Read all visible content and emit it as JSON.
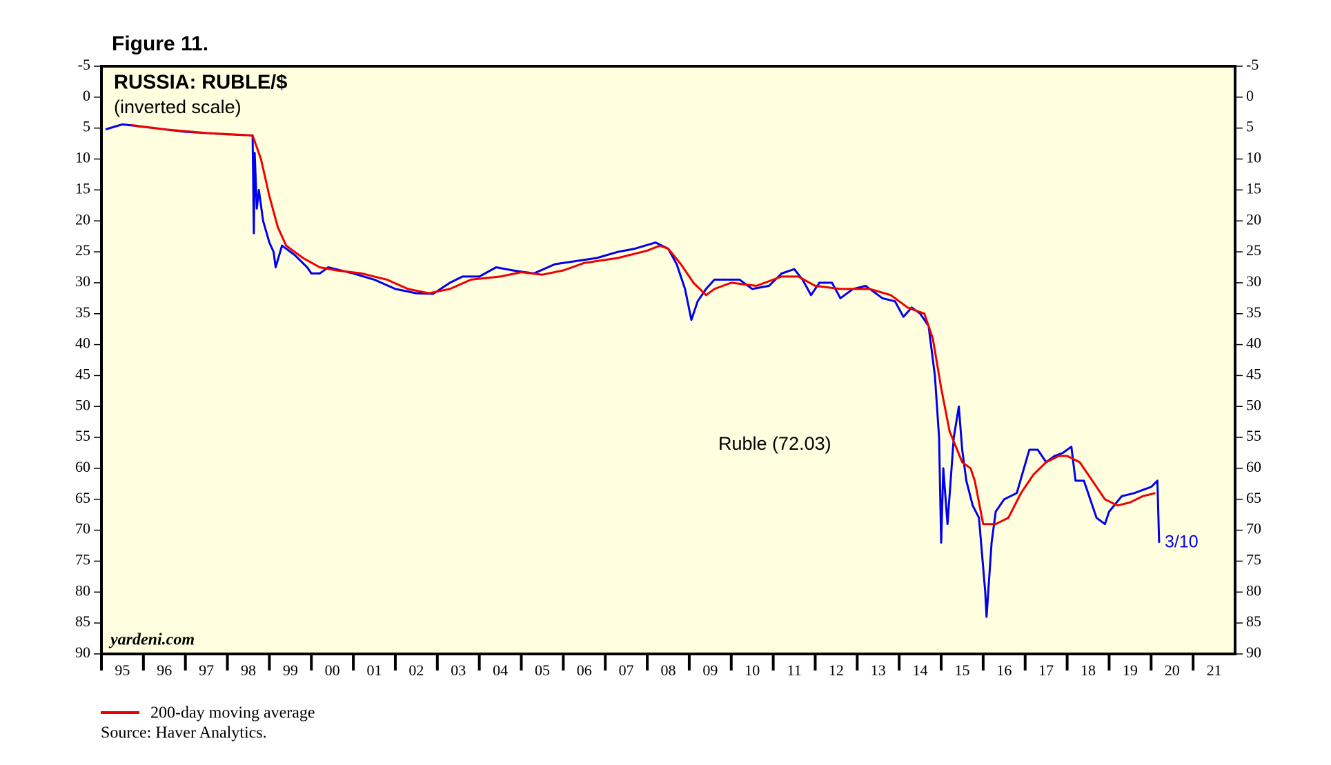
{
  "chart_data": {
    "type": "line",
    "figure_label": "Figure 11.",
    "title": "RUSSIA: RUBLE/$",
    "subtitle": "(inverted scale)",
    "watermark": "yardeni.com",
    "source": "Source: Haver Analytics.",
    "end_label": "3/10",
    "inverted": true,
    "grid": false,
    "background": "#ffffe0",
    "ylim": [
      -5,
      90
    ],
    "yticks": [
      -5,
      0,
      5,
      10,
      15,
      20,
      25,
      30,
      35,
      40,
      45,
      50,
      55,
      60,
      65,
      70,
      75,
      80,
      85,
      90
    ],
    "xlim": [
      1995,
      2022
    ],
    "xticks": [
      {
        "value": 1995.5,
        "label": "95"
      },
      {
        "value": 1996.5,
        "label": "96"
      },
      {
        "value": 1997.5,
        "label": "97"
      },
      {
        "value": 1998.5,
        "label": "98"
      },
      {
        "value": 1999.5,
        "label": "99"
      },
      {
        "value": 2000.5,
        "label": "00"
      },
      {
        "value": 2001.5,
        "label": "01"
      },
      {
        "value": 2002.5,
        "label": "02"
      },
      {
        "value": 2003.5,
        "label": "03"
      },
      {
        "value": 2004.5,
        "label": "04"
      },
      {
        "value": 2005.5,
        "label": "05"
      },
      {
        "value": 2006.5,
        "label": "06"
      },
      {
        "value": 2007.5,
        "label": "07"
      },
      {
        "value": 2008.5,
        "label": "08"
      },
      {
        "value": 2009.5,
        "label": "09"
      },
      {
        "value": 2010.5,
        "label": "10"
      },
      {
        "value": 2011.5,
        "label": "11"
      },
      {
        "value": 2012.5,
        "label": "12"
      },
      {
        "value": 2013.5,
        "label": "13"
      },
      {
        "value": 2014.5,
        "label": "14"
      },
      {
        "value": 2015.5,
        "label": "15"
      },
      {
        "value": 2016.5,
        "label": "16"
      },
      {
        "value": 2017.5,
        "label": "17"
      },
      {
        "value": 2018.5,
        "label": "18"
      },
      {
        "value": 2019.5,
        "label": "19"
      },
      {
        "value": 2020.5,
        "label": "20"
      },
      {
        "value": 2021.5,
        "label": "21"
      }
    ],
    "series": [
      {
        "name": "Ruble (72.03)",
        "color": "#0000ee",
        "x": [
          1995.1,
          1995.5,
          1996,
          1996.5,
          1997,
          1997.5,
          1998,
          1998.6,
          1998.63,
          1998.65,
          1998.7,
          1998.75,
          1998.85,
          1999,
          1999.1,
          1999.15,
          1999.3,
          1999.6,
          1999.9,
          2000,
          2000.2,
          2000.4,
          2001,
          2001.5,
          2002,
          2002.5,
          2002.9,
          2003.3,
          2003.6,
          2004,
          2004.4,
          2004.8,
          2005.3,
          2005.8,
          2006.3,
          2006.8,
          2007.3,
          2007.7,
          2008.2,
          2008.5,
          2008.7,
          2008.9,
          2009.05,
          2009.2,
          2009.4,
          2009.6,
          2009.9,
          2010.2,
          2010.5,
          2010.9,
          2011.2,
          2011.5,
          2011.7,
          2011.9,
          2012.1,
          2012.4,
          2012.6,
          2012.9,
          2013.2,
          2013.6,
          2013.9,
          2014.1,
          2014.3,
          2014.5,
          2014.7,
          2014.85,
          2014.95,
          2015,
          2015.05,
          2015.15,
          2015.3,
          2015.42,
          2015.5,
          2015.6,
          2015.75,
          2015.9,
          2016.05,
          2016.08,
          2016.2,
          2016.3,
          2016.5,
          2016.8,
          2017.1,
          2017.3,
          2017.5,
          2017.7,
          2017.9,
          2018.1,
          2018.2,
          2018.4,
          2018.6,
          2018.7,
          2018.9,
          2019,
          2019.3,
          2019.6,
          2019.8,
          2020,
          2020.15,
          2020.19
        ],
        "values": [
          5.2,
          4.4,
          4.8,
          5.2,
          5.6,
          5.8,
          6.0,
          6.2,
          22,
          9,
          18,
          15,
          20,
          23.5,
          25,
          27.5,
          24,
          25.5,
          27.5,
          28.5,
          28.5,
          27.5,
          28.5,
          29.5,
          31,
          31.7,
          31.8,
          30,
          29,
          29,
          27.5,
          28,
          28.5,
          27,
          26.5,
          26,
          25,
          24.5,
          23.5,
          24.5,
          27,
          31,
          36,
          33,
          31,
          29.5,
          29.5,
          29.5,
          31,
          30.5,
          28.5,
          27.8,
          29.5,
          32,
          30,
          30,
          32.5,
          31,
          30.5,
          32.5,
          33,
          35.5,
          34,
          35,
          37,
          45,
          55,
          72,
          60,
          69,
          55,
          50,
          57,
          62,
          66,
          68,
          80,
          84,
          72,
          67,
          65,
          64,
          57,
          57,
          59,
          58,
          57.5,
          56.5,
          62,
          62,
          66,
          68,
          69,
          67,
          64.5,
          64,
          63.5,
          63,
          62,
          72.03
        ]
      },
      {
        "name": "200-day moving average",
        "color": "#ee0000",
        "x": [
          1995.7,
          1996.5,
          1997.5,
          1998.6,
          1998.8,
          1999,
          1999.2,
          1999.4,
          1999.8,
          2000.2,
          2000.6,
          2001.2,
          2001.8,
          2002.3,
          2002.8,
          2003.3,
          2003.8,
          2004.5,
          2005,
          2005.5,
          2006,
          2006.5,
          2007.3,
          2008,
          2008.3,
          2008.5,
          2008.8,
          2009.1,
          2009.4,
          2009.6,
          2010,
          2010.6,
          2011.2,
          2011.6,
          2012,
          2012.6,
          2013.3,
          2013.8,
          2014.2,
          2014.6,
          2014.8,
          2015,
          2015.2,
          2015.5,
          2015.7,
          2015.8,
          2016,
          2016.3,
          2016.6,
          2016.9,
          2017.2,
          2017.5,
          2017.8,
          2018,
          2018.3,
          2018.6,
          2018.9,
          2019.2,
          2019.5,
          2019.8,
          2020.1
        ],
        "values": [
          4.5,
          5.2,
          5.8,
          6.2,
          10,
          16,
          21,
          24,
          26,
          27.5,
          28,
          28.5,
          29.5,
          31,
          31.7,
          31,
          29.5,
          29,
          28.3,
          28.7,
          28,
          26.8,
          26,
          24.8,
          24,
          24.5,
          27,
          30,
          32,
          31,
          30,
          30.5,
          29,
          29,
          30.5,
          31,
          31,
          32,
          34,
          35,
          39,
          47,
          54,
          59,
          60,
          62,
          69,
          69,
          68,
          64,
          61,
          59,
          58,
          58,
          59,
          62,
          65,
          66,
          65.5,
          64.5,
          64
        ]
      }
    ]
  }
}
